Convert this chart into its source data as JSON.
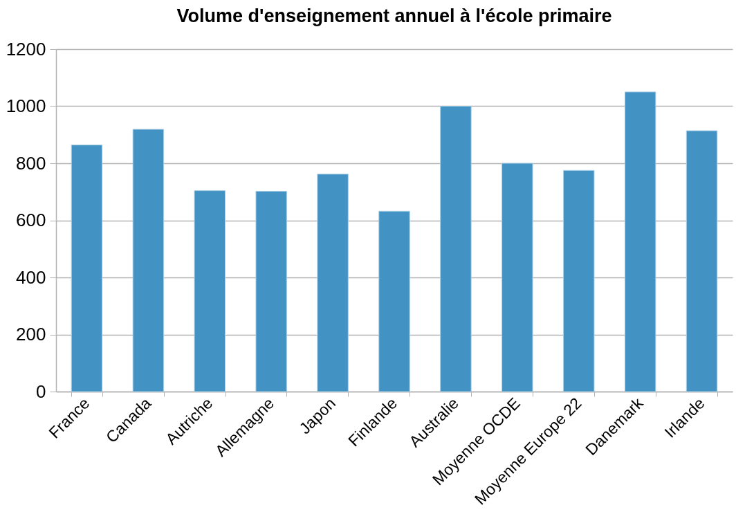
{
  "chart_data": {
    "type": "bar",
    "title": "Volume d'enseignement annuel à l'école primaire",
    "categories": [
      "France",
      "Canada",
      "Autriche",
      "Allemagne",
      "Japon",
      "Finlande",
      "Australie",
      "Moyenne OCDE",
      "Moyenne Europe 22",
      "Danemark",
      "Irlande"
    ],
    "values": [
      864,
      919,
      704,
      702,
      762,
      632,
      1000,
      800,
      775,
      1050,
      914
    ],
    "color": "#4292c3",
    "ylim": [
      0,
      1200
    ],
    "yticks": [
      0,
      200,
      400,
      600,
      800,
      1000,
      1200
    ],
    "grid": "y"
  }
}
